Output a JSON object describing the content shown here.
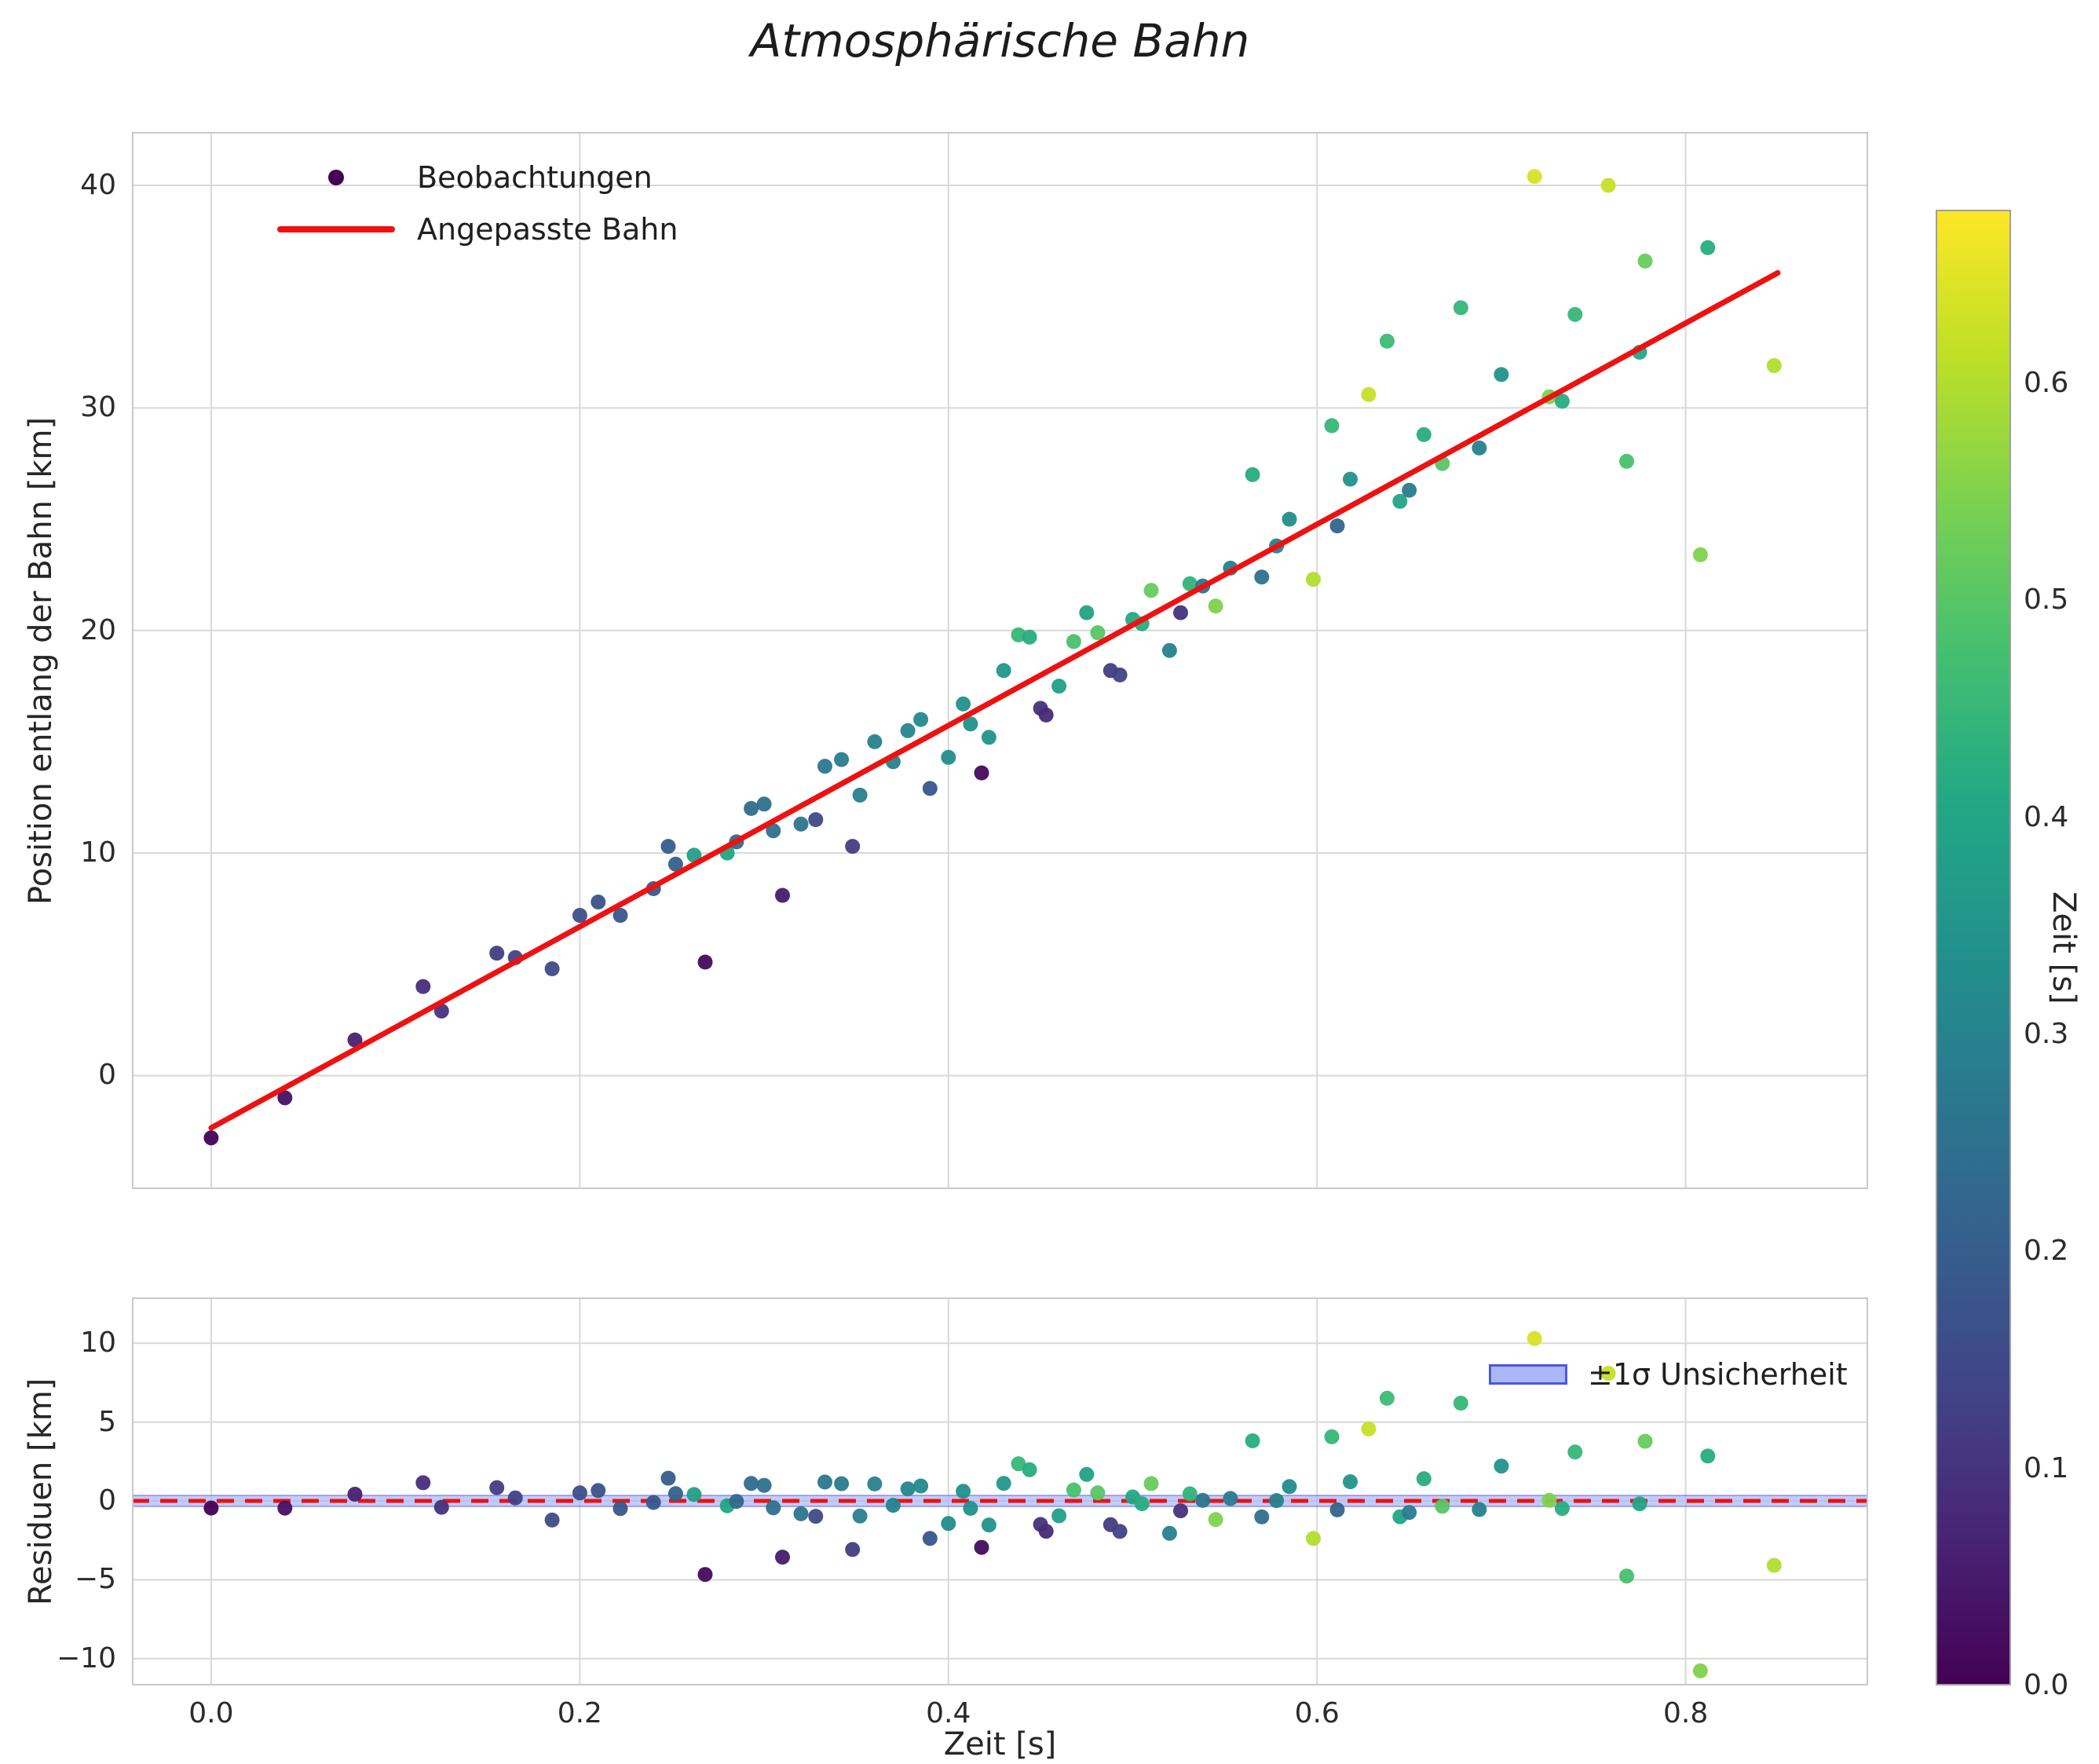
{
  "title": "Atmosphärische Bahn",
  "chart_data": {
    "type": "scatter",
    "title": "Atmosphärische Bahn",
    "colormap": "viridis",
    "points_format": [
      "zeit_s",
      "position_km",
      "farbwert_zeit_s"
    ],
    "points": [
      [
        0.0,
        -2.8,
        0.0
      ],
      [
        0.04,
        -1.0,
        0.03
      ],
      [
        0.078,
        1.6,
        0.06
      ],
      [
        0.115,
        4.0,
        0.09
      ],
      [
        0.125,
        2.9,
        0.1
      ],
      [
        0.155,
        5.5,
        0.12
      ],
      [
        0.165,
        5.3,
        0.13
      ],
      [
        0.185,
        4.8,
        0.15
      ],
      [
        0.2,
        7.2,
        0.16
      ],
      [
        0.21,
        7.8,
        0.17
      ],
      [
        0.222,
        7.2,
        0.18
      ],
      [
        0.24,
        8.4,
        0.19
      ],
      [
        0.248,
        10.3,
        0.2
      ],
      [
        0.252,
        9.5,
        0.21
      ],
      [
        0.262,
        9.9,
        0.38
      ],
      [
        0.268,
        5.1,
        0.02
      ],
      [
        0.28,
        10.0,
        0.4
      ],
      [
        0.285,
        10.5,
        0.23
      ],
      [
        0.293,
        12.0,
        0.24
      ],
      [
        0.3,
        12.2,
        0.25
      ],
      [
        0.305,
        11.0,
        0.25
      ],
      [
        0.31,
        8.1,
        0.05
      ],
      [
        0.32,
        11.3,
        0.26
      ],
      [
        0.328,
        11.5,
        0.15
      ],
      [
        0.333,
        13.9,
        0.27
      ],
      [
        0.342,
        14.2,
        0.28
      ],
      [
        0.348,
        10.3,
        0.12
      ],
      [
        0.352,
        12.6,
        0.29
      ],
      [
        0.36,
        15.0,
        0.3
      ],
      [
        0.37,
        14.1,
        0.3
      ],
      [
        0.378,
        15.5,
        0.31
      ],
      [
        0.385,
        16.0,
        0.32
      ],
      [
        0.39,
        12.9,
        0.18
      ],
      [
        0.4,
        14.3,
        0.33
      ],
      [
        0.408,
        16.7,
        0.34
      ],
      [
        0.412,
        15.8,
        0.34
      ],
      [
        0.418,
        13.6,
        0.02
      ],
      [
        0.422,
        15.2,
        0.35
      ],
      [
        0.43,
        18.2,
        0.36
      ],
      [
        0.438,
        19.8,
        0.45
      ],
      [
        0.444,
        19.7,
        0.42
      ],
      [
        0.45,
        16.5,
        0.1
      ],
      [
        0.453,
        16.2,
        0.08
      ],
      [
        0.46,
        17.5,
        0.38
      ],
      [
        0.468,
        19.5,
        0.48
      ],
      [
        0.475,
        20.8,
        0.39
      ],
      [
        0.481,
        19.9,
        0.5
      ],
      [
        0.488,
        18.2,
        0.12
      ],
      [
        0.493,
        18.0,
        0.13
      ],
      [
        0.5,
        20.5,
        0.41
      ],
      [
        0.505,
        20.3,
        0.42
      ],
      [
        0.51,
        21.8,
        0.52
      ],
      [
        0.52,
        19.1,
        0.3
      ],
      [
        0.526,
        20.8,
        0.1
      ],
      [
        0.531,
        22.1,
        0.44
      ],
      [
        0.538,
        22.0,
        0.26
      ],
      [
        0.545,
        21.1,
        0.55
      ],
      [
        0.553,
        22.8,
        0.28
      ],
      [
        0.565,
        27.0,
        0.42
      ],
      [
        0.57,
        22.4,
        0.25
      ],
      [
        0.578,
        23.8,
        0.3
      ],
      [
        0.585,
        25.0,
        0.33
      ],
      [
        0.598,
        22.3,
        0.6
      ],
      [
        0.608,
        29.2,
        0.45
      ],
      [
        0.611,
        24.7,
        0.22
      ],
      [
        0.618,
        26.8,
        0.35
      ],
      [
        0.628,
        30.6,
        0.62
      ],
      [
        0.638,
        33.0,
        0.46
      ],
      [
        0.645,
        25.8,
        0.4
      ],
      [
        0.65,
        26.3,
        0.28
      ],
      [
        0.658,
        28.8,
        0.42
      ],
      [
        0.668,
        27.5,
        0.5
      ],
      [
        0.678,
        34.5,
        0.45
      ],
      [
        0.688,
        28.2,
        0.3
      ],
      [
        0.7,
        31.5,
        0.35
      ],
      [
        0.718,
        40.4,
        0.64
      ],
      [
        0.726,
        30.5,
        0.55
      ],
      [
        0.733,
        30.3,
        0.42
      ],
      [
        0.74,
        34.2,
        0.45
      ],
      [
        0.758,
        40.0,
        0.62
      ],
      [
        0.768,
        27.6,
        0.48
      ],
      [
        0.775,
        32.5,
        0.4
      ],
      [
        0.778,
        36.6,
        0.52
      ],
      [
        0.808,
        23.4,
        0.55
      ],
      [
        0.812,
        37.2,
        0.42
      ],
      [
        0.848,
        31.9,
        0.6
      ]
    ],
    "fit": {
      "label": "Angepasste Bahn",
      "slope_km_per_s": 45.2,
      "intercept_km": -2.35,
      "x_start": 0.0,
      "x_end": 0.85,
      "color": "#ee1111"
    },
    "main_plot": {
      "ylabel": "Position entlang der Bahn [km]",
      "xlim": [
        -0.043,
        0.899
      ],
      "ylim": [
        -5.1,
        42.4
      ],
      "xticks": [
        0.0,
        0.2,
        0.4,
        0.6,
        0.8
      ],
      "yticks": [
        0,
        10,
        20,
        30,
        40
      ],
      "grid": true,
      "legend": {
        "position": "upper-left",
        "items": [
          {
            "label": "Beobachtungen",
            "handle": "marker",
            "color": "#440154"
          },
          {
            "label": "Angepasste Bahn",
            "handle": "line",
            "color": "#ee1111"
          }
        ]
      }
    },
    "residual_plot": {
      "ylabel": "Residuen [km]",
      "xlabel": "Zeit [s]",
      "ylim": [
        -11.7,
        12.9
      ],
      "yticks": [
        -10,
        -5,
        0,
        5,
        10
      ],
      "zero_line": {
        "color": "#ee1111",
        "style": "dashed"
      },
      "band": {
        "label": "±1σ Unsicherheit",
        "half_width_km": 0.35,
        "fill": "#aab6f5",
        "edge": "#4b57e0"
      },
      "legend_position": "upper-right"
    },
    "colorbar": {
      "label": "Zeit [s]",
      "vmin": 0.0,
      "vmax": 0.68,
      "ticks": [
        0.0,
        0.1,
        0.2,
        0.3,
        0.4,
        0.5,
        0.6
      ]
    },
    "style": {
      "grid_color": "#d8d8d8",
      "spine_color": "#c9c9c9",
      "background": "#ffffff"
    }
  }
}
